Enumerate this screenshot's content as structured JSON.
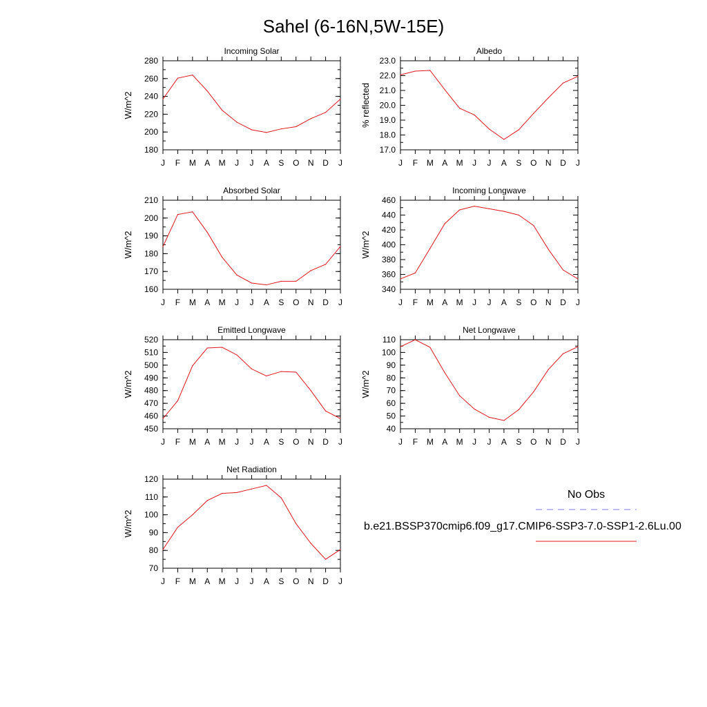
{
  "figure": {
    "title": "Sahel (6-16N,5W-15E)",
    "months": [
      "J",
      "F",
      "M",
      "A",
      "M",
      "J",
      "J",
      "A",
      "S",
      "O",
      "N",
      "D",
      "J"
    ],
    "line_color": "#e0141c",
    "obs_color": "#7a7ae0"
  },
  "legend": {
    "obs_label": "No Obs",
    "model_label": "b.e21.BSSP370cmip6.f09_g17.CMIP6-SSP3-7.0-SSP1-2.6Lu.00"
  },
  "chart_data": [
    {
      "type": "line",
      "title": "Incoming Solar",
      "ylabel": "W/m^2",
      "ylim": [
        180,
        280
      ],
      "yticks": [
        "180",
        "200",
        "220",
        "240",
        "260",
        "280"
      ],
      "yminor": 10,
      "values": [
        237,
        260.5,
        264,
        246,
        224.5,
        211,
        202.5,
        199.5,
        203.5,
        206,
        215,
        222,
        237
      ]
    },
    {
      "type": "line",
      "title": "Albedo",
      "ylabel": "% reflected",
      "ylim": [
        17,
        23
      ],
      "yticks": [
        "17.0",
        "18.0",
        "19.0",
        "20.0",
        "21.0",
        "22.0",
        "23.0"
      ],
      "yminor": 0.5,
      "values": [
        22.05,
        22.3,
        22.35,
        21.05,
        19.8,
        19.35,
        18.4,
        17.7,
        18.35,
        19.45,
        20.5,
        21.5,
        21.95
      ]
    },
    {
      "type": "line",
      "title": "Absorbed Solar",
      "ylabel": "W/m^2",
      "ylim": [
        160,
        210
      ],
      "yticks": [
        "160",
        "170",
        "180",
        "190",
        "200",
        "210"
      ],
      "yminor": 5,
      "values": [
        184,
        202,
        203.5,
        192,
        178,
        168,
        163.5,
        162.5,
        164.5,
        164.5,
        170.5,
        174,
        184
      ]
    },
    {
      "type": "line",
      "title": "Incoming Longwave",
      "ylabel": "W/m^2",
      "ylim": [
        340,
        460
      ],
      "yticks": [
        "340",
        "360",
        "380",
        "400",
        "420",
        "440",
        "460"
      ],
      "yminor": 10,
      "values": [
        354,
        362,
        395,
        428.5,
        447,
        452,
        448.5,
        445,
        440,
        426,
        394,
        366,
        354
      ]
    },
    {
      "type": "line",
      "title": "Emitted Longwave",
      "ylabel": "W/m^2",
      "ylim": [
        450,
        520
      ],
      "yticks": [
        "450",
        "460",
        "470",
        "480",
        "490",
        "500",
        "510",
        "520"
      ],
      "yminor": 5,
      "values": [
        458,
        472,
        499.5,
        513.5,
        514,
        508,
        497,
        491.5,
        495,
        494.5,
        480,
        464,
        458
      ]
    },
    {
      "type": "line",
      "title": "Net Longwave",
      "ylabel": "W/m^2",
      "ylim": [
        40,
        110
      ],
      "yticks": [
        "40",
        "50",
        "60",
        "70",
        "80",
        "90",
        "100",
        "110"
      ],
      "yminor": 5,
      "values": [
        104.5,
        110,
        104,
        84,
        66,
        55.5,
        49,
        46.5,
        55,
        69,
        86.5,
        99,
        104.5
      ]
    },
    {
      "type": "line",
      "title": "Net Radiation",
      "ylabel": "W/m^2",
      "ylim": [
        70,
        120
      ],
      "yticks": [
        "70",
        "80",
        "90",
        "100",
        "110",
        "120"
      ],
      "yminor": 5,
      "values": [
        80.5,
        93,
        100,
        108,
        112,
        112.5,
        114.5,
        116.5,
        109.5,
        95,
        84,
        75,
        80.5
      ]
    }
  ]
}
